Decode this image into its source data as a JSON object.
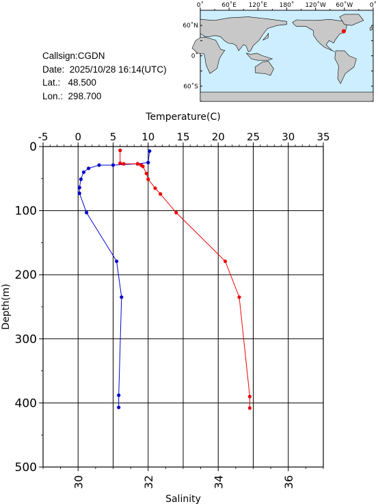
{
  "station": {
    "callsign_label": "Callsign:",
    "callsign": "CGDN",
    "date_label": "Date:",
    "date": "2025/10/28 16:14(UTC)",
    "lat_label": "Lat.:",
    "lat": "48.500",
    "lon_label": "Lon.:",
    "lon": "298.700"
  },
  "map": {
    "lon_ticks": [
      "0˚",
      "60˚E",
      "120˚E",
      "180˚",
      "120˚W",
      "60˚W",
      "0˚"
    ],
    "lat_ticks": [
      "60˚N",
      "0˚",
      "60˚S"
    ],
    "ocean_color": "#cceeff",
    "land_color": "#c8c8c8",
    "marker_color": "#ff0000",
    "station_lon": 298.7,
    "station_lat": 48.5
  },
  "chart_data": {
    "type": "line",
    "title": "",
    "ylabel": "Depth(m)",
    "ylim": [
      0,
      500
    ],
    "y_ticks": [
      0,
      100,
      200,
      300,
      400,
      500
    ],
    "y_inverted": true,
    "grid": true,
    "temperature_axis": {
      "label": "Temperature(C)",
      "position": "top",
      "range": [
        -5,
        35
      ],
      "ticks": [
        -5,
        0,
        5,
        10,
        15,
        20,
        25,
        30,
        35
      ]
    },
    "salinity_axis": {
      "label": "Salinity",
      "position": "bottom",
      "range": [
        29,
        37
      ],
      "ticks": [
        30,
        32,
        34,
        36
      ]
    },
    "series": [
      {
        "name": "Temperature",
        "axis": "temperature",
        "color": "#0000cc",
        "points": [
          [
            10.2,
            7
          ],
          [
            10.0,
            25
          ],
          [
            8.5,
            27
          ],
          [
            5.0,
            29
          ],
          [
            3.0,
            29
          ],
          [
            1.5,
            34
          ],
          [
            0.8,
            40
          ],
          [
            0.4,
            51
          ],
          [
            0.2,
            64
          ],
          [
            0.2,
            73
          ],
          [
            1.2,
            103
          ],
          [
            5.5,
            179
          ],
          [
            6.2,
            235
          ],
          [
            5.8,
            388
          ],
          [
            5.8,
            407
          ]
        ]
      },
      {
        "name": "Salinity",
        "axis": "salinity",
        "color": "#ee0000",
        "points": [
          [
            31.2,
            6
          ],
          [
            31.2,
            26
          ],
          [
            31.3,
            27
          ],
          [
            31.7,
            27
          ],
          [
            31.8,
            29
          ],
          [
            31.85,
            31
          ],
          [
            31.95,
            42
          ],
          [
            32.0,
            51
          ],
          [
            32.2,
            65
          ],
          [
            32.35,
            74
          ],
          [
            32.8,
            103
          ],
          [
            34.2,
            179
          ],
          [
            34.6,
            235
          ],
          [
            34.9,
            390
          ],
          [
            34.9,
            408
          ]
        ]
      }
    ]
  }
}
